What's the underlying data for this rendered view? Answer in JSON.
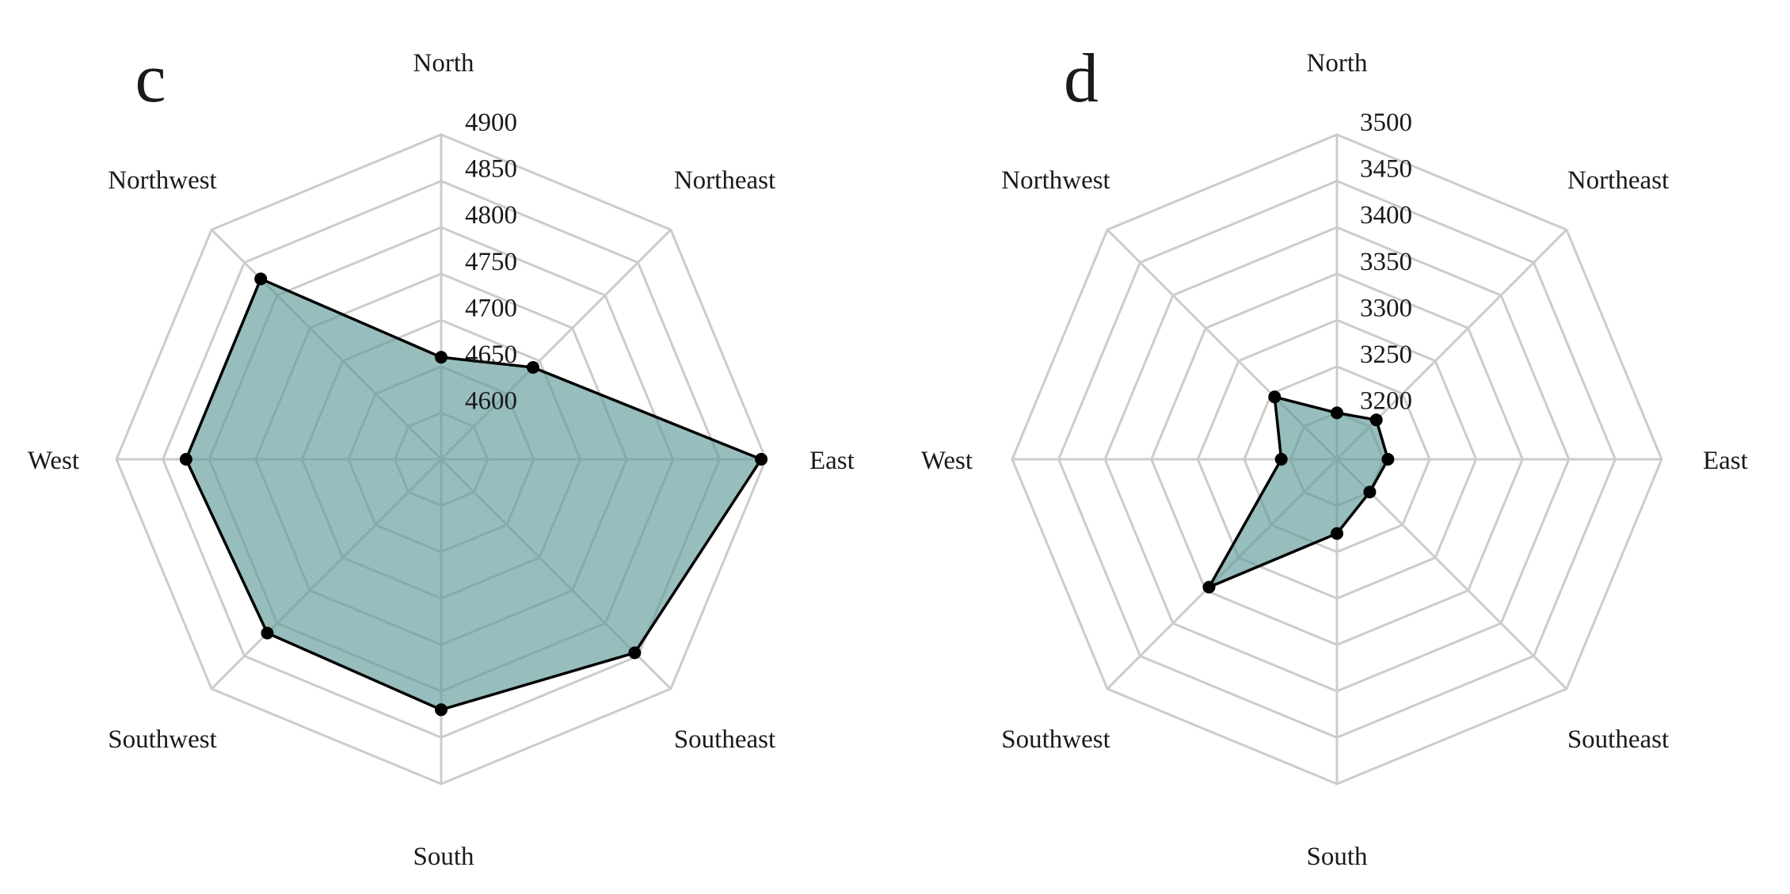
{
  "colors": {
    "grid": "#cccccc",
    "fill": "#5f9999",
    "fill_opacity": 0.65,
    "line": "#000000",
    "point": "#000000"
  },
  "chart_data": [
    {
      "type": "radar",
      "panel_label": "c",
      "categories": [
        "North",
        "Northeast",
        "East",
        "Southeast",
        "South",
        "Southwest",
        "West",
        "Northwest"
      ],
      "ticks": [
        "4900",
        "4850",
        "4800",
        "4750",
        "4700",
        "4650",
        "4600"
      ],
      "rlim": [
        4550,
        4900
      ],
      "values": [
        4660,
        4690,
        4895,
        4845,
        4820,
        4815,
        4825,
        4825
      ],
      "grid": true
    },
    {
      "type": "radar",
      "panel_label": "d",
      "categories": [
        "North",
        "Northeast",
        "East",
        "Southeast",
        "South",
        "Southwest",
        "West",
        "Northwest"
      ],
      "ticks": [
        "3500",
        "3450",
        "3400",
        "3350",
        "3300",
        "3250",
        "3200"
      ],
      "rlim": [
        3150,
        3500
      ],
      "values": [
        3200,
        3210,
        3205,
        3200,
        3230,
        3345,
        3210,
        3245
      ],
      "grid": true
    }
  ]
}
